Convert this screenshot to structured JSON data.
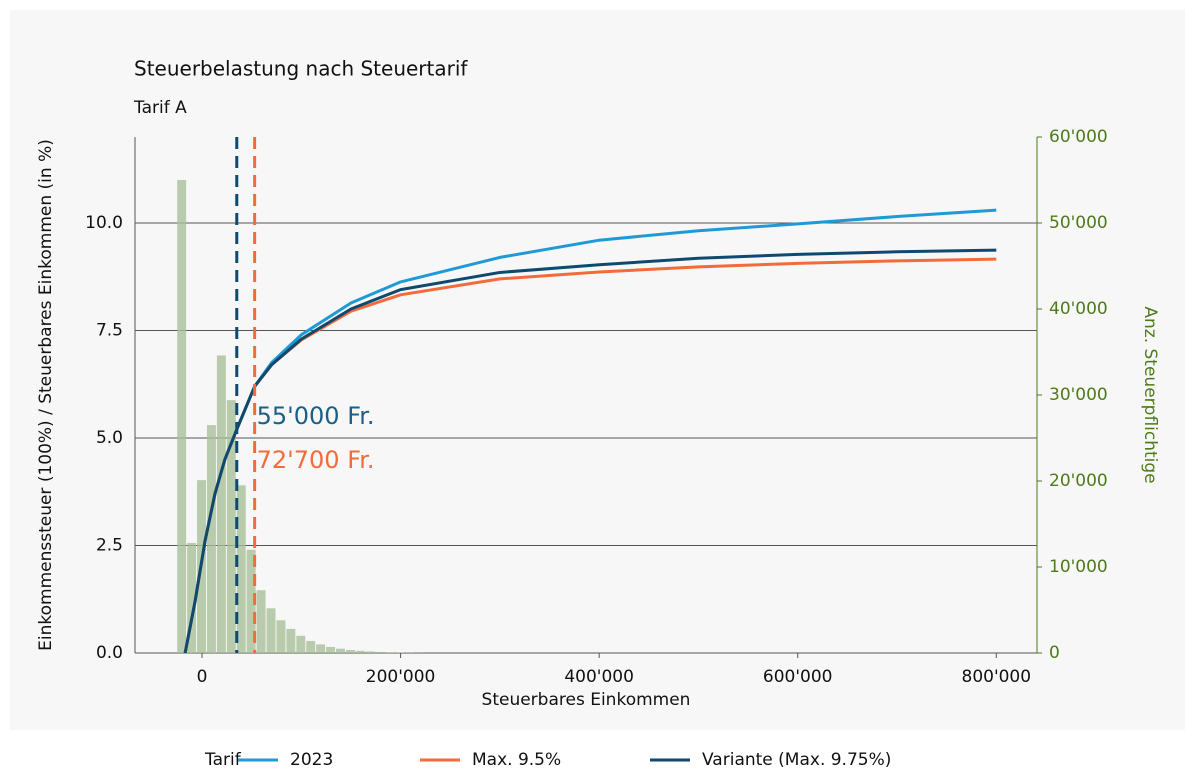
{
  "chart_data": {
    "type": "line",
    "title": "Steuerbelastung nach Steuertarif",
    "subtitle": "Tarif A",
    "xlabel": "Steuerbares Einkommen",
    "ylabel": "Einkommenssteuer (100%) / Steuerbares Einkommen (in %)",
    "y2label": "Anz. Steuerpflichtige",
    "legend_title": "Tarif",
    "xlim": [
      -67500,
      841000
    ],
    "ylim": [
      0,
      12
    ],
    "y2lim": [
      0,
      60000
    ],
    "xticks": [
      0,
      {
        "value": 200000,
        "label": "200'000"
      },
      {
        "value": 400000,
        "label": "400'000"
      },
      {
        "value": 600000,
        "label": "600'000"
      },
      {
        "value": 800000,
        "label": "800'000"
      }
    ],
    "yticks": [
      {
        "value": 0,
        "label": "0.0"
      },
      2.5,
      {
        "value": 5,
        "label": "5.0"
      },
      7.5,
      {
        "value": 10,
        "label": "10.0"
      }
    ],
    "y2ticks": [
      0,
      {
        "value": 10000,
        "label": "10'000"
      },
      {
        "value": 20000,
        "label": "20'000"
      },
      {
        "value": 30000,
        "label": "30'000"
      },
      {
        "value": 40000,
        "label": "40'000"
      },
      {
        "value": 50000,
        "label": "50'000"
      },
      {
        "value": 60000,
        "label": "60'000"
      }
    ],
    "grid": true,
    "histogram": {
      "axis": "y2",
      "color": "#a8bf98",
      "bins": [
        -25000,
        -15000,
        -5000,
        5000,
        15000,
        25000,
        35000,
        45000,
        55000,
        65000,
        75000,
        85000,
        95000,
        105000,
        115000,
        125000,
        135000,
        145000,
        155000,
        165000,
        175000,
        185000,
        195000,
        205000,
        215000,
        225000
      ],
      "counts": [
        55000,
        12800,
        20100,
        26500,
        34600,
        29400,
        19500,
        12000,
        7300,
        5200,
        3800,
        2800,
        2000,
        1400,
        1000,
        700,
        500,
        350,
        250,
        180,
        120,
        80,
        50,
        30,
        20
      ]
    },
    "x": [
      -17000,
      -7000,
      3000,
      13000,
      23000,
      35000,
      53000,
      70000,
      100000,
      150000,
      200000,
      300000,
      400000,
      500000,
      600000,
      700000,
      800000
    ],
    "series": [
      {
        "name": "2023",
        "color": "#1f9ad6",
        "values": [
          0,
          1.2,
          2.6,
          3.7,
          4.5,
          5.2,
          6.2,
          6.75,
          7.4,
          8.14,
          8.63,
          9.2,
          9.6,
          9.82,
          9.98,
          10.15,
          10.3
        ]
      },
      {
        "name": "Max. 9.5%",
        "color": "#f26b3a",
        "values": [
          0,
          1.2,
          2.6,
          3.7,
          4.5,
          5.2,
          6.2,
          6.7,
          7.28,
          7.95,
          8.33,
          8.7,
          8.86,
          8.98,
          9.06,
          9.12,
          9.16
        ]
      },
      {
        "name": "Variante (Max. 9.75%)",
        "color": "#0e4a6e",
        "values": [
          0,
          1.2,
          2.6,
          3.7,
          4.5,
          5.2,
          6.2,
          6.7,
          7.3,
          8.0,
          8.45,
          8.85,
          9.03,
          9.18,
          9.27,
          9.33,
          9.37
        ]
      }
    ],
    "vlines": [
      {
        "x": 35000,
        "label": "55'000 Fr.",
        "color": "#0e4a6e",
        "text_color": "#1b5f86"
      },
      {
        "x": 53000,
        "label": "72'700 Fr.",
        "color": "#f26b3a",
        "text_color": "#f26b3a"
      }
    ]
  }
}
